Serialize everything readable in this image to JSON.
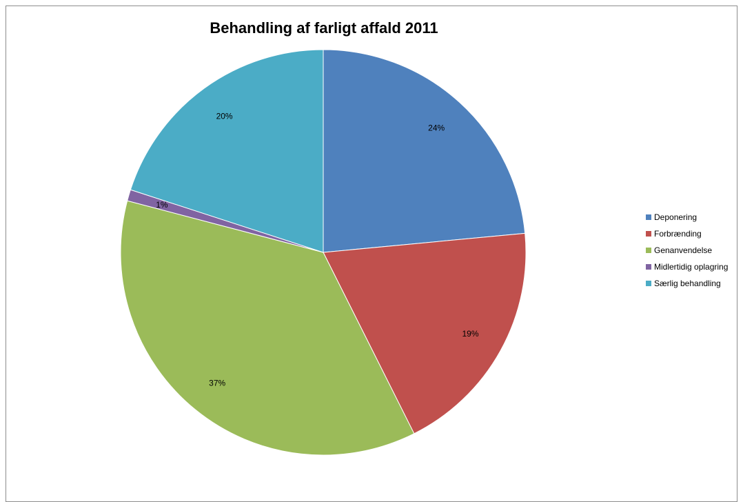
{
  "chart_data": {
    "type": "pie",
    "title": "Behandling af farligt affald 2011",
    "categories": [
      "Deponering",
      "Forbrænding",
      "Genanvendelse",
      "Midlertidig oplagring",
      "Særlig behandling"
    ],
    "values": [
      23.5,
      19.1,
      36.5,
      0.9,
      20.0
    ],
    "labels": [
      "24%",
      "19%",
      "37%",
      "1%",
      "20%"
    ],
    "colors": [
      "#4F81BD",
      "#C0504D",
      "#9BBB59",
      "#8064A2",
      "#4BACC6"
    ],
    "start_angle_deg": 0,
    "direction": "clockwise",
    "legend_position": "right"
  }
}
